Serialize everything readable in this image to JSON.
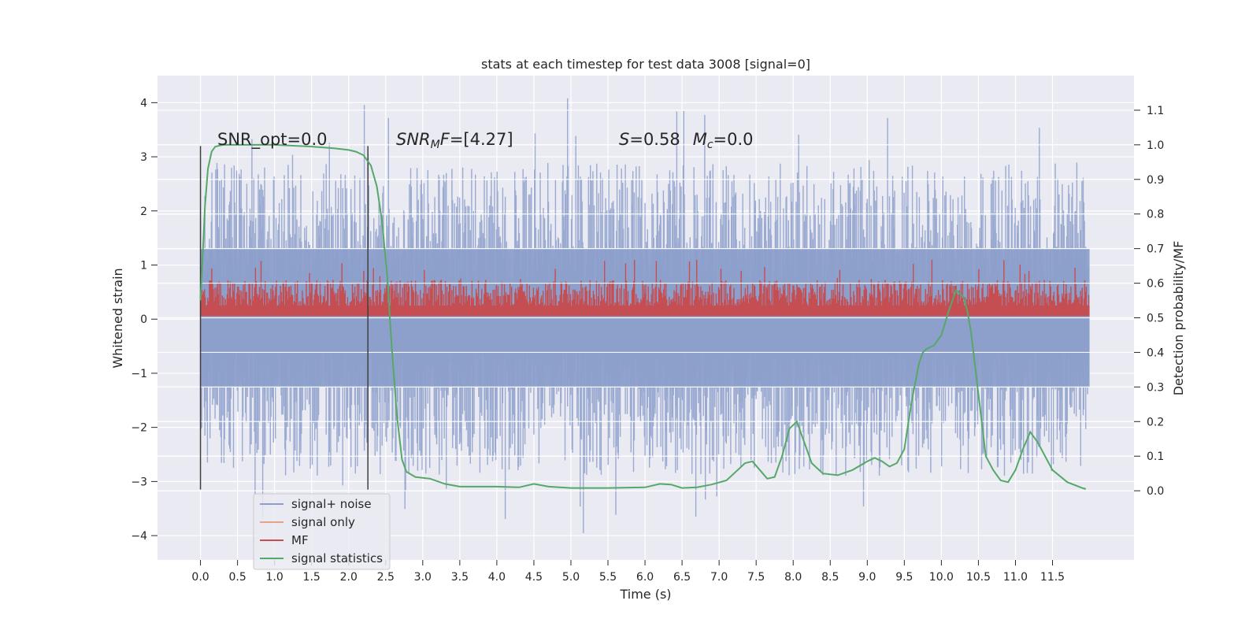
{
  "chart_data": {
    "type": "line",
    "title": "stats at each timestep for test data 3008 [signal=0]",
    "xlabel": "Time (s)",
    "ylabel_left": "Whitened strain",
    "ylabel_right": "Detection probability/MF",
    "xlim": [
      -0.58,
      12.6
    ],
    "ylim_left": [
      -4.45,
      4.5
    ],
    "ylim_right": [
      -0.2,
      1.2
    ],
    "x_ticks": [
      0.0,
      0.5,
      1.0,
      1.5,
      2.0,
      2.5,
      3.0,
      3.5,
      4.0,
      4.5,
      5.0,
      5.5,
      6.0,
      6.5,
      7.0,
      7.5,
      8.0,
      8.5,
      9.0,
      9.5,
      10.0,
      10.5,
      11.0,
      11.5
    ],
    "x_tick_labels": [
      "0.0",
      "0.5",
      "1.0",
      "1.5",
      "2.0",
      "2.5",
      "3.0",
      "3.5",
      "4.0",
      "4.5",
      "5.0",
      "5.5",
      "6.0",
      "6.5",
      "7.0",
      "7.5",
      "8.0",
      "8.5",
      "9.0",
      "9.5",
      "10.0",
      "10.5",
      "11.0",
      "11.5"
    ],
    "y_left_ticks": [
      -4,
      -3,
      -2,
      -1,
      0,
      1,
      2,
      3,
      4
    ],
    "y_left_tick_labels": [
      "−4",
      "−3",
      "−2",
      "−1",
      "0",
      "1",
      "2",
      "3",
      "4"
    ],
    "y_right_ticks": [
      0.0,
      0.1,
      0.2,
      0.3,
      0.4,
      0.5,
      0.6,
      0.7,
      0.8,
      0.9,
      1.0,
      1.1
    ],
    "y_right_tick_labels": [
      "0.0",
      "0.1",
      "0.2",
      "0.3",
      "0.4",
      "0.5",
      "0.6",
      "0.7",
      "0.8",
      "0.9",
      "1.0",
      "1.1"
    ],
    "grid": true,
    "legend_position": "lower-left",
    "duration_s": 12.0,
    "vertical_markers": [
      {
        "x": 0.0,
        "ymin": -3.15,
        "ymax": 3.2
      },
      {
        "x": 2.26,
        "ymin": -3.15,
        "ymax": 3.2
      }
    ],
    "annotations": {
      "snr_opt": "SNR_opt=0.0",
      "snr_mf_prefix": "SNR",
      "snr_mf_sub": "M",
      "snr_mf_mid": "F",
      "snr_mf_value": "=[4.27]",
      "s_symbol": "S",
      "s_value": "=0.58",
      "mc_symbol": "M",
      "mc_sub": "c",
      "mc_value": "=0.0"
    },
    "series": [
      {
        "name": "signal+ noise",
        "color": "#8c9fcb",
        "kind": "noise-band",
        "axis": "left",
        "envelope_upper": 2.3,
        "envelope_lower": -2.3,
        "peak_max": 4.1,
        "peak_min": -4.0
      },
      {
        "name": "signal only",
        "color": "#e8a383",
        "kind": "line",
        "axis": "left",
        "values": []
      },
      {
        "name": "MF",
        "color": "#c44e52",
        "kind": "noise-band",
        "axis": "right",
        "band_low": 0.505,
        "band_high": 0.59,
        "peak_max": 0.67
      },
      {
        "name": "signal statistics",
        "color": "#55a868",
        "kind": "line",
        "axis": "right",
        "x": [
          0.0,
          0.03,
          0.06,
          0.1,
          0.15,
          0.2,
          0.3,
          0.5,
          1.0,
          1.5,
          1.8,
          2.0,
          2.1,
          2.2,
          2.3,
          2.38,
          2.45,
          2.52,
          2.58,
          2.65,
          2.72,
          2.78,
          2.9,
          3.1,
          3.3,
          3.5,
          4.0,
          4.3,
          4.5,
          4.7,
          5.0,
          5.5,
          6.0,
          6.2,
          6.35,
          6.5,
          6.7,
          6.9,
          7.1,
          7.25,
          7.35,
          7.45,
          7.55,
          7.65,
          7.75,
          7.85,
          7.95,
          8.05,
          8.15,
          8.25,
          8.4,
          8.6,
          8.8,
          9.0,
          9.1,
          9.2,
          9.3,
          9.4,
          9.5,
          9.6,
          9.7,
          9.75,
          9.8,
          9.9,
          10.0,
          10.1,
          10.2,
          10.3,
          10.35,
          10.4,
          10.5,
          10.6,
          10.7,
          10.8,
          10.9,
          11.0,
          11.1,
          11.2,
          11.3,
          11.5,
          11.7,
          11.9,
          11.95
        ],
        "values": [
          0.55,
          0.68,
          0.82,
          0.93,
          0.98,
          0.995,
          1.0,
          1.0,
          1.0,
          0.995,
          0.99,
          0.985,
          0.98,
          0.97,
          0.94,
          0.88,
          0.78,
          0.62,
          0.42,
          0.22,
          0.09,
          0.055,
          0.04,
          0.035,
          0.02,
          0.012,
          0.012,
          0.01,
          0.02,
          0.012,
          0.008,
          0.008,
          0.01,
          0.02,
          0.018,
          0.008,
          0.01,
          0.018,
          0.03,
          0.06,
          0.08,
          0.085,
          0.06,
          0.035,
          0.04,
          0.1,
          0.18,
          0.2,
          0.14,
          0.08,
          0.05,
          0.045,
          0.06,
          0.085,
          0.095,
          0.085,
          0.07,
          0.08,
          0.12,
          0.26,
          0.37,
          0.4,
          0.41,
          0.42,
          0.45,
          0.52,
          0.58,
          0.56,
          0.52,
          0.46,
          0.28,
          0.1,
          0.06,
          0.03,
          0.025,
          0.06,
          0.12,
          0.17,
          0.14,
          0.06,
          0.025,
          0.008,
          0.005
        ]
      }
    ]
  }
}
